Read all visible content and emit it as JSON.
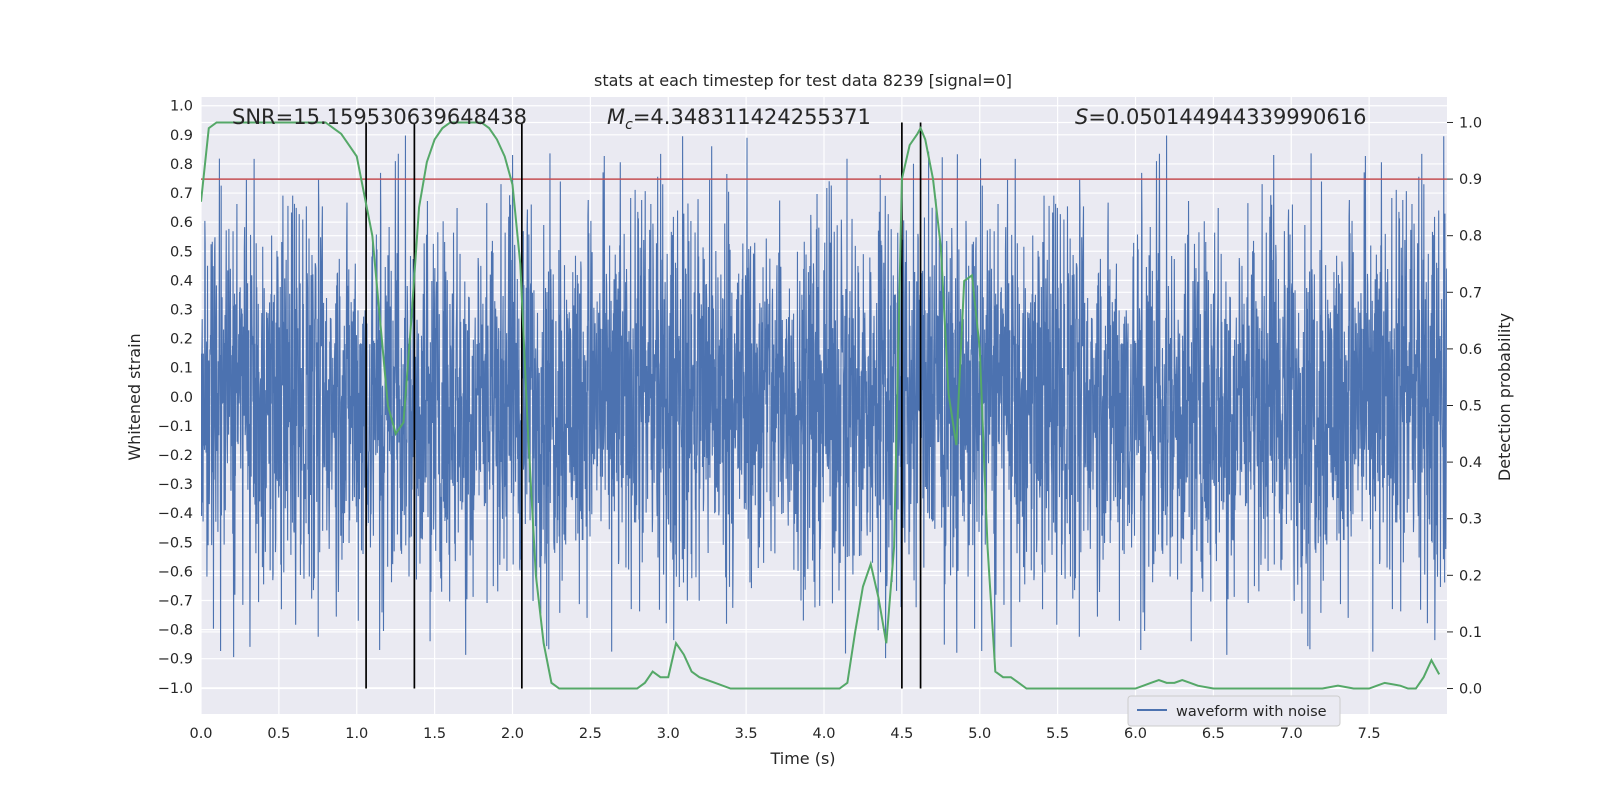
{
  "chart_data": {
    "type": "line",
    "title": "stats at each timestep for test data 8239 [signal=0]",
    "xlabel": "Time (s)",
    "ylabel_left": "Whitened strain",
    "ylabel_right": "Detection probability",
    "xlim": [
      0.0,
      8.0
    ],
    "ylim_left": [
      -1.09,
      1.03
    ],
    "ylim_right": [
      -0.045,
      1.045
    ],
    "x_ticks": [
      "0.0",
      "0.5",
      "1.0",
      "1.5",
      "2.0",
      "2.5",
      "3.0",
      "3.5",
      "4.0",
      "4.5",
      "5.0",
      "5.5",
      "6.0",
      "6.5",
      "7.0",
      "7.5"
    ],
    "y_ticks_left": [
      "1.0",
      "0.9",
      "0.8",
      "0.7",
      "0.6",
      "0.5",
      "0.4",
      "0.3",
      "0.2",
      "0.1",
      "0.0",
      "−0.1",
      "−0.2",
      "−0.3",
      "−0.4",
      "−0.5",
      "−0.6",
      "−0.7",
      "−0.8",
      "−0.9",
      "−1.0"
    ],
    "y_ticks_right": [
      "1.0",
      "0.9",
      "0.8",
      "0.7",
      "0.6",
      "0.5",
      "0.4",
      "0.3",
      "0.2",
      "0.1",
      "0.0"
    ],
    "grid": true,
    "legend": {
      "location": "lower-right",
      "entries": [
        "waveform with noise"
      ]
    },
    "annotations": {
      "snr": "SNR=15.159530639648438",
      "mc_prefix": "M",
      "mc_sub": "c",
      "mc_value": "=4.348311424255371",
      "s_prefix": "S",
      "s_value": "=0.050144944339990616"
    },
    "threshold": 0.9,
    "vertical_lines_x": [
      1.06,
      1.37,
      2.06,
      4.5,
      4.62
    ],
    "waveform": {
      "name": "waveform with noise",
      "color": "#4c72b0",
      "duration_s": 8.0,
      "typical_envelope": 0.45,
      "peak_range": [
        -1.0,
        0.92
      ]
    },
    "detection_probability": {
      "color": "#55a868",
      "x": [
        0.0,
        0.05,
        0.1,
        0.2,
        0.3,
        0.4,
        0.5,
        0.6,
        0.7,
        0.8,
        0.85,
        0.9,
        0.95,
        1.0,
        1.05,
        1.1,
        1.15,
        1.2,
        1.25,
        1.3,
        1.35,
        1.4,
        1.45,
        1.5,
        1.55,
        1.6,
        1.7,
        1.8,
        1.85,
        1.9,
        1.95,
        2.0,
        2.05,
        2.1,
        2.15,
        2.2,
        2.25,
        2.3,
        2.4,
        2.5,
        2.6,
        2.7,
        2.8,
        2.85,
        2.9,
        2.95,
        3.0,
        3.05,
        3.1,
        3.15,
        3.2,
        3.3,
        3.4,
        3.5,
        3.6,
        3.7,
        3.8,
        3.9,
        4.0,
        4.1,
        4.15,
        4.2,
        4.25,
        4.3,
        4.35,
        4.4,
        4.45,
        4.5,
        4.55,
        4.6,
        4.62,
        4.65,
        4.7,
        4.75,
        4.8,
        4.85,
        4.9,
        4.95,
        5.0,
        5.05,
        5.1,
        5.15,
        5.2,
        5.25,
        5.3,
        5.4,
        5.5,
        5.6,
        5.7,
        5.8,
        5.9,
        6.0,
        6.1,
        6.15,
        6.2,
        6.25,
        6.3,
        6.35,
        6.4,
        6.5,
        6.6,
        6.7,
        6.8,
        6.9,
        7.0,
        7.1,
        7.2,
        7.3,
        7.4,
        7.5,
        7.55,
        7.6,
        7.7,
        7.75,
        7.8,
        7.85,
        7.9,
        7.95
      ],
      "y": [
        0.86,
        0.99,
        1.0,
        1.0,
        1.0,
        1.0,
        1.0,
        1.0,
        1.0,
        1.0,
        0.99,
        0.98,
        0.96,
        0.94,
        0.87,
        0.8,
        0.65,
        0.5,
        0.45,
        0.47,
        0.65,
        0.85,
        0.93,
        0.97,
        0.99,
        1.0,
        1.0,
        1.0,
        0.99,
        0.97,
        0.94,
        0.89,
        0.75,
        0.45,
        0.2,
        0.08,
        0.01,
        0.0,
        0.0,
        0.0,
        0.0,
        0.0,
        0.0,
        0.01,
        0.03,
        0.02,
        0.02,
        0.08,
        0.06,
        0.03,
        0.02,
        0.01,
        0.0,
        0.0,
        0.0,
        0.0,
        0.0,
        0.0,
        0.0,
        0.0,
        0.01,
        0.1,
        0.18,
        0.22,
        0.16,
        0.08,
        0.25,
        0.9,
        0.96,
        0.98,
        0.99,
        0.97,
        0.9,
        0.78,
        0.52,
        0.43,
        0.72,
        0.73,
        0.6,
        0.25,
        0.03,
        0.02,
        0.02,
        0.01,
        0.0,
        0.0,
        0.0,
        0.0,
        0.0,
        0.0,
        0.0,
        0.0,
        0.01,
        0.015,
        0.01,
        0.01,
        0.015,
        0.01,
        0.005,
        0.0,
        0.0,
        0.0,
        0.0,
        0.0,
        0.0,
        0.0,
        0.0,
        0.005,
        0.0,
        0.0,
        0.005,
        0.01,
        0.005,
        0.0,
        0.0,
        0.02,
        0.05,
        0.025
      ]
    }
  }
}
